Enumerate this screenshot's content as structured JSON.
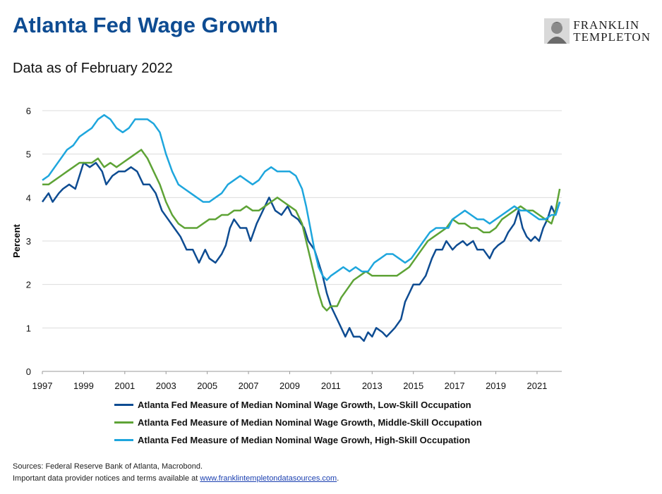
{
  "header": {
    "title": "Atlanta Fed Wage Growth",
    "subtitle": "Data as of February 2022",
    "logo_line1": "FRANKLIN",
    "logo_line2": "TEMPLETON",
    "logo_icon": "portrait-icon"
  },
  "footer": {
    "sources": "Sources: Federal Reserve Bank of Atlanta, Macrobond.",
    "notice": "Important data provider notices and terms available at ",
    "link_text": "www.franklintempletondatasources.com",
    "notice_end": "."
  },
  "chart_data": {
    "type": "line",
    "ylabel": "Percent",
    "xlabel": "",
    "ylim": [
      0,
      6
    ],
    "xlim": [
      1997,
      2022.2
    ],
    "yticks": [
      "0",
      "1",
      "2",
      "3",
      "4",
      "5",
      "6"
    ],
    "xticks": [
      "1997",
      "1999",
      "2001",
      "2003",
      "2005",
      "2007",
      "2009",
      "2011",
      "2013",
      "2015",
      "2017",
      "2019",
      "2021"
    ],
    "grid": "horizontal",
    "legend_position": "bottom",
    "series": [
      {
        "name": "Atlanta Fed Measure of Median Nominal Wage Growth, Low-Skill Occupation",
        "color": "#0e4c92",
        "points": [
          [
            1997.0,
            3.9
          ],
          [
            1997.3,
            4.1
          ],
          [
            1997.5,
            3.9
          ],
          [
            1997.8,
            4.1
          ],
          [
            1998.0,
            4.2
          ],
          [
            1998.3,
            4.3
          ],
          [
            1998.6,
            4.2
          ],
          [
            1998.8,
            4.5
          ],
          [
            1999.0,
            4.8
          ],
          [
            1999.3,
            4.7
          ],
          [
            1999.6,
            4.8
          ],
          [
            1999.9,
            4.6
          ],
          [
            2000.1,
            4.3
          ],
          [
            2000.4,
            4.5
          ],
          [
            2000.7,
            4.6
          ],
          [
            2001.0,
            4.6
          ],
          [
            2001.3,
            4.7
          ],
          [
            2001.6,
            4.6
          ],
          [
            2001.9,
            4.3
          ],
          [
            2002.2,
            4.3
          ],
          [
            2002.5,
            4.1
          ],
          [
            2002.8,
            3.7
          ],
          [
            2003.1,
            3.5
          ],
          [
            2003.4,
            3.3
          ],
          [
            2003.7,
            3.1
          ],
          [
            2004.0,
            2.8
          ],
          [
            2004.3,
            2.8
          ],
          [
            2004.6,
            2.5
          ],
          [
            2004.9,
            2.8
          ],
          [
            2005.1,
            2.6
          ],
          [
            2005.4,
            2.5
          ],
          [
            2005.7,
            2.7
          ],
          [
            2005.9,
            2.9
          ],
          [
            2006.1,
            3.3
          ],
          [
            2006.3,
            3.5
          ],
          [
            2006.6,
            3.3
          ],
          [
            2006.9,
            3.3
          ],
          [
            2007.1,
            3.0
          ],
          [
            2007.4,
            3.4
          ],
          [
            2007.6,
            3.6
          ],
          [
            2007.8,
            3.8
          ],
          [
            2008.0,
            4.0
          ],
          [
            2008.3,
            3.7
          ],
          [
            2008.6,
            3.6
          ],
          [
            2008.9,
            3.8
          ],
          [
            2009.1,
            3.6
          ],
          [
            2009.4,
            3.5
          ],
          [
            2009.7,
            3.3
          ],
          [
            2009.9,
            3.0
          ],
          [
            2010.2,
            2.8
          ],
          [
            2010.4,
            2.5
          ],
          [
            2010.6,
            2.2
          ],
          [
            2010.8,
            1.8
          ],
          [
            2011.0,
            1.5
          ],
          [
            2011.3,
            1.2
          ],
          [
            2011.5,
            1.0
          ],
          [
            2011.7,
            0.8
          ],
          [
            2011.9,
            1.0
          ],
          [
            2012.1,
            0.8
          ],
          [
            2012.4,
            0.8
          ],
          [
            2012.6,
            0.7
          ],
          [
            2012.8,
            0.9
          ],
          [
            2013.0,
            0.8
          ],
          [
            2013.2,
            1.0
          ],
          [
            2013.5,
            0.9
          ],
          [
            2013.7,
            0.8
          ],
          [
            2013.9,
            0.9
          ],
          [
            2014.1,
            1.0
          ],
          [
            2014.4,
            1.2
          ],
          [
            2014.6,
            1.6
          ],
          [
            2014.8,
            1.8
          ],
          [
            2015.0,
            2.0
          ],
          [
            2015.3,
            2.0
          ],
          [
            2015.6,
            2.2
          ],
          [
            2015.9,
            2.6
          ],
          [
            2016.1,
            2.8
          ],
          [
            2016.4,
            2.8
          ],
          [
            2016.6,
            3.0
          ],
          [
            2016.9,
            2.8
          ],
          [
            2017.1,
            2.9
          ],
          [
            2017.4,
            3.0
          ],
          [
            2017.6,
            2.9
          ],
          [
            2017.9,
            3.0
          ],
          [
            2018.1,
            2.8
          ],
          [
            2018.4,
            2.8
          ],
          [
            2018.7,
            2.6
          ],
          [
            2018.9,
            2.8
          ],
          [
            2019.1,
            2.9
          ],
          [
            2019.4,
            3.0
          ],
          [
            2019.6,
            3.2
          ],
          [
            2019.9,
            3.4
          ],
          [
            2020.1,
            3.7
          ],
          [
            2020.3,
            3.3
          ],
          [
            2020.5,
            3.1
          ],
          [
            2020.7,
            3.0
          ],
          [
            2020.9,
            3.1
          ],
          [
            2021.1,
            3.0
          ],
          [
            2021.3,
            3.3
          ],
          [
            2021.5,
            3.5
          ],
          [
            2021.7,
            3.8
          ],
          [
            2021.9,
            3.6
          ],
          [
            2022.1,
            3.9
          ]
        ]
      },
      {
        "name": "Atlanta Fed Measure of Median Nominal Wage Growth, Middle-Skill Occupation",
        "color": "#5ea336",
        "points": [
          [
            1997.0,
            4.3
          ],
          [
            1997.3,
            4.3
          ],
          [
            1997.6,
            4.4
          ],
          [
            1997.9,
            4.5
          ],
          [
            1998.2,
            4.6
          ],
          [
            1998.5,
            4.7
          ],
          [
            1998.8,
            4.8
          ],
          [
            1999.1,
            4.8
          ],
          [
            1999.4,
            4.8
          ],
          [
            1999.7,
            4.9
          ],
          [
            2000.0,
            4.7
          ],
          [
            2000.3,
            4.8
          ],
          [
            2000.6,
            4.7
          ],
          [
            2000.9,
            4.8
          ],
          [
            2001.2,
            4.9
          ],
          [
            2001.5,
            5.0
          ],
          [
            2001.8,
            5.1
          ],
          [
            2002.1,
            4.9
          ],
          [
            2002.4,
            4.6
          ],
          [
            2002.7,
            4.3
          ],
          [
            2003.0,
            3.9
          ],
          [
            2003.3,
            3.6
          ],
          [
            2003.6,
            3.4
          ],
          [
            2003.9,
            3.3
          ],
          [
            2004.2,
            3.3
          ],
          [
            2004.5,
            3.3
          ],
          [
            2004.8,
            3.4
          ],
          [
            2005.1,
            3.5
          ],
          [
            2005.4,
            3.5
          ],
          [
            2005.7,
            3.6
          ],
          [
            2006.0,
            3.6
          ],
          [
            2006.3,
            3.7
          ],
          [
            2006.6,
            3.7
          ],
          [
            2006.9,
            3.8
          ],
          [
            2007.2,
            3.7
          ],
          [
            2007.5,
            3.7
          ],
          [
            2007.8,
            3.8
          ],
          [
            2008.1,
            3.9
          ],
          [
            2008.4,
            4.0
          ],
          [
            2008.7,
            3.9
          ],
          [
            2009.0,
            3.8
          ],
          [
            2009.3,
            3.7
          ],
          [
            2009.6,
            3.4
          ],
          [
            2009.8,
            3.0
          ],
          [
            2010.0,
            2.6
          ],
          [
            2010.2,
            2.2
          ],
          [
            2010.4,
            1.8
          ],
          [
            2010.6,
            1.5
          ],
          [
            2010.8,
            1.4
          ],
          [
            2011.0,
            1.5
          ],
          [
            2011.3,
            1.5
          ],
          [
            2011.5,
            1.7
          ],
          [
            2011.8,
            1.9
          ],
          [
            2012.1,
            2.1
          ],
          [
            2012.4,
            2.2
          ],
          [
            2012.7,
            2.3
          ],
          [
            2013.0,
            2.2
          ],
          [
            2013.3,
            2.2
          ],
          [
            2013.6,
            2.2
          ],
          [
            2013.9,
            2.2
          ],
          [
            2014.2,
            2.2
          ],
          [
            2014.5,
            2.3
          ],
          [
            2014.8,
            2.4
          ],
          [
            2015.1,
            2.6
          ],
          [
            2015.4,
            2.8
          ],
          [
            2015.7,
            3.0
          ],
          [
            2016.0,
            3.1
          ],
          [
            2016.3,
            3.2
          ],
          [
            2016.6,
            3.3
          ],
          [
            2016.9,
            3.5
          ],
          [
            2017.2,
            3.4
          ],
          [
            2017.5,
            3.4
          ],
          [
            2017.8,
            3.3
          ],
          [
            2018.1,
            3.3
          ],
          [
            2018.4,
            3.2
          ],
          [
            2018.7,
            3.2
          ],
          [
            2019.0,
            3.3
          ],
          [
            2019.3,
            3.5
          ],
          [
            2019.6,
            3.6
          ],
          [
            2019.9,
            3.7
          ],
          [
            2020.2,
            3.8
          ],
          [
            2020.5,
            3.7
          ],
          [
            2020.8,
            3.7
          ],
          [
            2021.1,
            3.6
          ],
          [
            2021.4,
            3.5
          ],
          [
            2021.7,
            3.4
          ],
          [
            2021.9,
            3.7
          ],
          [
            2022.1,
            4.2
          ]
        ]
      },
      {
        "name": "Atlanta Fed Measure of Median Nominal Wage Growh, High-Skill Occupation",
        "color": "#1ea6dd",
        "points": [
          [
            1997.0,
            4.4
          ],
          [
            1997.3,
            4.5
          ],
          [
            1997.6,
            4.7
          ],
          [
            1997.9,
            4.9
          ],
          [
            1998.2,
            5.1
          ],
          [
            1998.5,
            5.2
          ],
          [
            1998.8,
            5.4
          ],
          [
            1999.1,
            5.5
          ],
          [
            1999.4,
            5.6
          ],
          [
            1999.7,
            5.8
          ],
          [
            2000.0,
            5.9
          ],
          [
            2000.3,
            5.8
          ],
          [
            2000.6,
            5.6
          ],
          [
            2000.9,
            5.5
          ],
          [
            2001.2,
            5.6
          ],
          [
            2001.5,
            5.8
          ],
          [
            2001.8,
            5.8
          ],
          [
            2002.1,
            5.8
          ],
          [
            2002.4,
            5.7
          ],
          [
            2002.7,
            5.5
          ],
          [
            2003.0,
            5.0
          ],
          [
            2003.3,
            4.6
          ],
          [
            2003.6,
            4.3
          ],
          [
            2003.9,
            4.2
          ],
          [
            2004.2,
            4.1
          ],
          [
            2004.5,
            4.0
          ],
          [
            2004.8,
            3.9
          ],
          [
            2005.1,
            3.9
          ],
          [
            2005.4,
            4.0
          ],
          [
            2005.7,
            4.1
          ],
          [
            2006.0,
            4.3
          ],
          [
            2006.3,
            4.4
          ],
          [
            2006.6,
            4.5
          ],
          [
            2006.9,
            4.4
          ],
          [
            2007.2,
            4.3
          ],
          [
            2007.5,
            4.4
          ],
          [
            2007.8,
            4.6
          ],
          [
            2008.1,
            4.7
          ],
          [
            2008.4,
            4.6
          ],
          [
            2008.7,
            4.6
          ],
          [
            2009.0,
            4.6
          ],
          [
            2009.3,
            4.5
          ],
          [
            2009.6,
            4.2
          ],
          [
            2009.8,
            3.8
          ],
          [
            2010.0,
            3.3
          ],
          [
            2010.2,
            2.8
          ],
          [
            2010.4,
            2.4
          ],
          [
            2010.6,
            2.2
          ],
          [
            2010.8,
            2.1
          ],
          [
            2011.0,
            2.2
          ],
          [
            2011.3,
            2.3
          ],
          [
            2011.6,
            2.4
          ],
          [
            2011.9,
            2.3
          ],
          [
            2012.2,
            2.4
          ],
          [
            2012.5,
            2.3
          ],
          [
            2012.8,
            2.3
          ],
          [
            2013.1,
            2.5
          ],
          [
            2013.4,
            2.6
          ],
          [
            2013.7,
            2.7
          ],
          [
            2014.0,
            2.7
          ],
          [
            2014.3,
            2.6
          ],
          [
            2014.6,
            2.5
          ],
          [
            2014.9,
            2.6
          ],
          [
            2015.2,
            2.8
          ],
          [
            2015.5,
            3.0
          ],
          [
            2015.8,
            3.2
          ],
          [
            2016.1,
            3.3
          ],
          [
            2016.4,
            3.3
          ],
          [
            2016.7,
            3.3
          ],
          [
            2016.9,
            3.5
          ],
          [
            2017.2,
            3.6
          ],
          [
            2017.5,
            3.7
          ],
          [
            2017.8,
            3.6
          ],
          [
            2018.1,
            3.5
          ],
          [
            2018.4,
            3.5
          ],
          [
            2018.7,
            3.4
          ],
          [
            2019.0,
            3.5
          ],
          [
            2019.3,
            3.6
          ],
          [
            2019.6,
            3.7
          ],
          [
            2019.9,
            3.8
          ],
          [
            2020.2,
            3.7
          ],
          [
            2020.5,
            3.7
          ],
          [
            2020.8,
            3.6
          ],
          [
            2021.1,
            3.5
          ],
          [
            2021.4,
            3.5
          ],
          [
            2021.7,
            3.6
          ],
          [
            2021.9,
            3.6
          ],
          [
            2022.1,
            3.9
          ]
        ]
      }
    ]
  }
}
